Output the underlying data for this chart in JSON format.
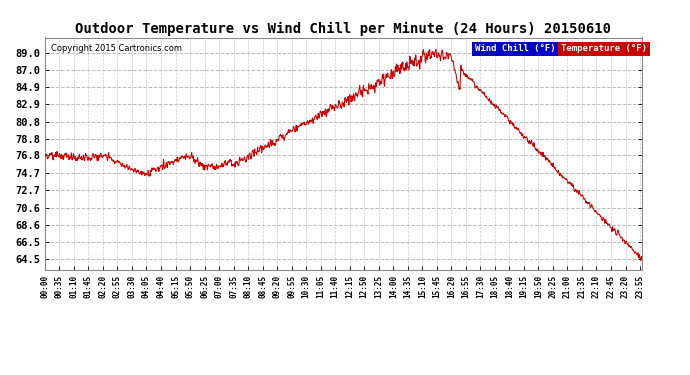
{
  "title": "Outdoor Temperature vs Wind Chill per Minute (24 Hours) 20150610",
  "copyright": "Copyright 2015 Cartronics.com",
  "legend_wind": "Wind Chill (°F)",
  "legend_temp": "Temperature (°F)",
  "line_color": "#cc0000",
  "background_color": "#ffffff",
  "plot_bg_color": "#ffffff",
  "yticks": [
    89.0,
    87.0,
    84.9,
    82.9,
    80.8,
    78.8,
    76.8,
    74.7,
    72.7,
    70.6,
    68.6,
    66.5,
    64.5
  ],
  "ylim": [
    63.2,
    90.8
  ],
  "grid_color": "#bbbbbb",
  "tick_step_minutes": 35
}
